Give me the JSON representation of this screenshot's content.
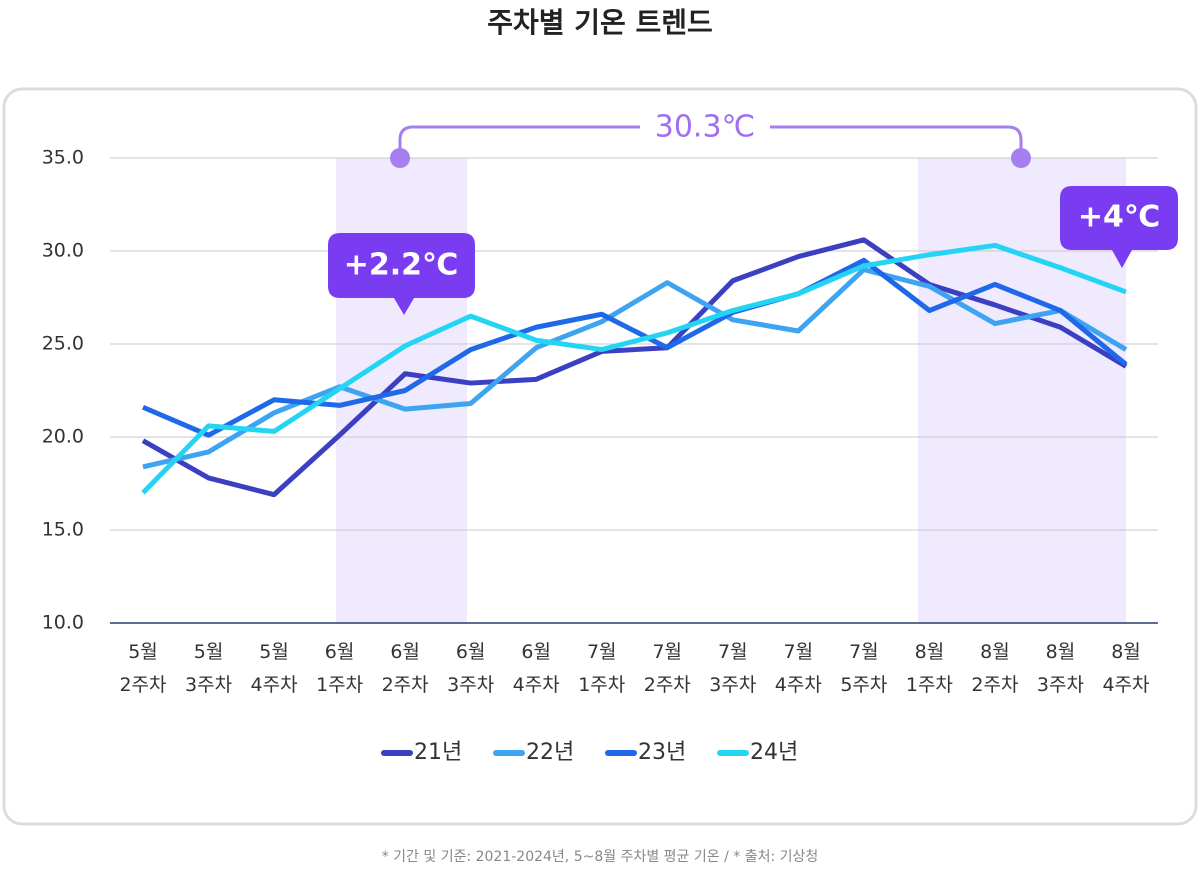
{
  "chart_data": {
    "type": "line",
    "title": "주차별 기온 트렌드",
    "categories": [
      "5월 2주차",
      "5월 3주차",
      "5월 4주차",
      "6월 1주차",
      "6월 2주차",
      "6월 3주차",
      "6월 4주차",
      "7월 1주차",
      "7월 2주차",
      "7월 3주차",
      "7월 4주차",
      "7월 5주차",
      "8월 1주차",
      "8월 2주차",
      "8월 3주차",
      "8월 4주차"
    ],
    "series": [
      {
        "name": "21년",
        "color": "#3b3fc1",
        "values": [
          19.8,
          17.8,
          16.9,
          20.1,
          23.4,
          22.9,
          23.1,
          24.6,
          24.8,
          28.4,
          29.7,
          30.6,
          28.2,
          27.1,
          25.9,
          23.8
        ]
      },
      {
        "name": "22년",
        "color": "#3ea4f2",
        "values": [
          18.4,
          19.2,
          21.3,
          22.7,
          21.5,
          21.8,
          24.8,
          26.2,
          28.3,
          26.3,
          25.7,
          29.0,
          28.1,
          26.1,
          26.8,
          24.7
        ]
      },
      {
        "name": "23년",
        "color": "#1f68e8",
        "values": [
          21.6,
          20.1,
          22.0,
          21.7,
          22.5,
          24.7,
          25.9,
          26.6,
          24.8,
          26.7,
          27.7,
          29.5,
          26.8,
          28.2,
          26.8,
          23.9
        ]
      },
      {
        "name": "24년",
        "color": "#24d5f3",
        "values": [
          17.0,
          20.6,
          20.3,
          22.6,
          24.9,
          26.5,
          25.2,
          24.7,
          25.6,
          26.8,
          27.7,
          29.2,
          29.8,
          30.3,
          29.1,
          27.8
        ]
      }
    ],
    "ylim": [
      10,
      35
    ],
    "yticks": [
      {
        "value": 10,
        "label": "10.0"
      },
      {
        "value": 15,
        "label": "15.0"
      },
      {
        "value": 20,
        "label": "20.0"
      },
      {
        "value": 25,
        "label": "25.0"
      },
      {
        "value": 30,
        "label": "30.0"
      },
      {
        "value": 35,
        "label": "35.0"
      }
    ],
    "grid": true,
    "annotations": [
      "30.3℃",
      "+2.2℃",
      "+4℃"
    ],
    "note": "* 기간 및 기준: 2021-2024년, 5~8월 주차별 평균 기온 / * 출처: 기상청"
  }
}
